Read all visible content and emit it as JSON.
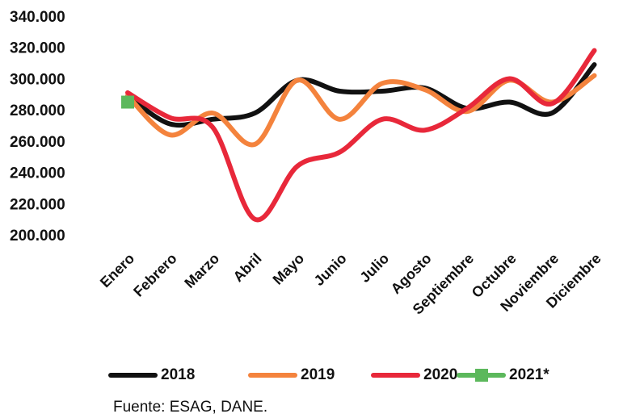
{
  "chart_data": {
    "type": "line",
    "categories": [
      "Enero",
      "Febrero",
      "Marzo",
      "Abril",
      "Mayo",
      "Junio",
      "Julio",
      "Agosto",
      "Septiembre",
      "Octubre",
      "Noviembre",
      "Diciembre"
    ],
    "series": [
      {
        "name": "2018",
        "color": "#111111",
        "values": [
          290000,
          272000,
          275000,
          279000,
          300000,
          293000,
          293000,
          295000,
          282000,
          286000,
          279000,
          310000
        ]
      },
      {
        "name": "2019",
        "color": "#f4833d",
        "values": [
          290000,
          265000,
          279000,
          259000,
          300000,
          275000,
          298000,
          294000,
          280000,
          300000,
          286000,
          303000
        ]
      },
      {
        "name": "2020",
        "color": "#e8283a",
        "values": [
          292000,
          276000,
          270000,
          211000,
          245000,
          254000,
          275000,
          268000,
          282000,
          301000,
          285000,
          319000
        ]
      },
      {
        "name": "2021*",
        "color": "#5cb85c",
        "values": [
          286000,
          null,
          null,
          null,
          null,
          null,
          null,
          null,
          null,
          null,
          null,
          null
        ]
      }
    ],
    "ylim": [
      200000,
      340000
    ],
    "yticks": [
      {
        "value": 200000,
        "label": "200.000"
      },
      {
        "value": 220000,
        "label": "220.000"
      },
      {
        "value": 240000,
        "label": "240.000"
      },
      {
        "value": 260000,
        "label": "260.000"
      },
      {
        "value": 280000,
        "label": "280.000"
      },
      {
        "value": 300000,
        "label": "300.000"
      },
      {
        "value": 320000,
        "label": "320.000"
      },
      {
        "value": 340000,
        "label": "340.000"
      }
    ],
    "source": "Fuente: ESAG, DANE."
  }
}
